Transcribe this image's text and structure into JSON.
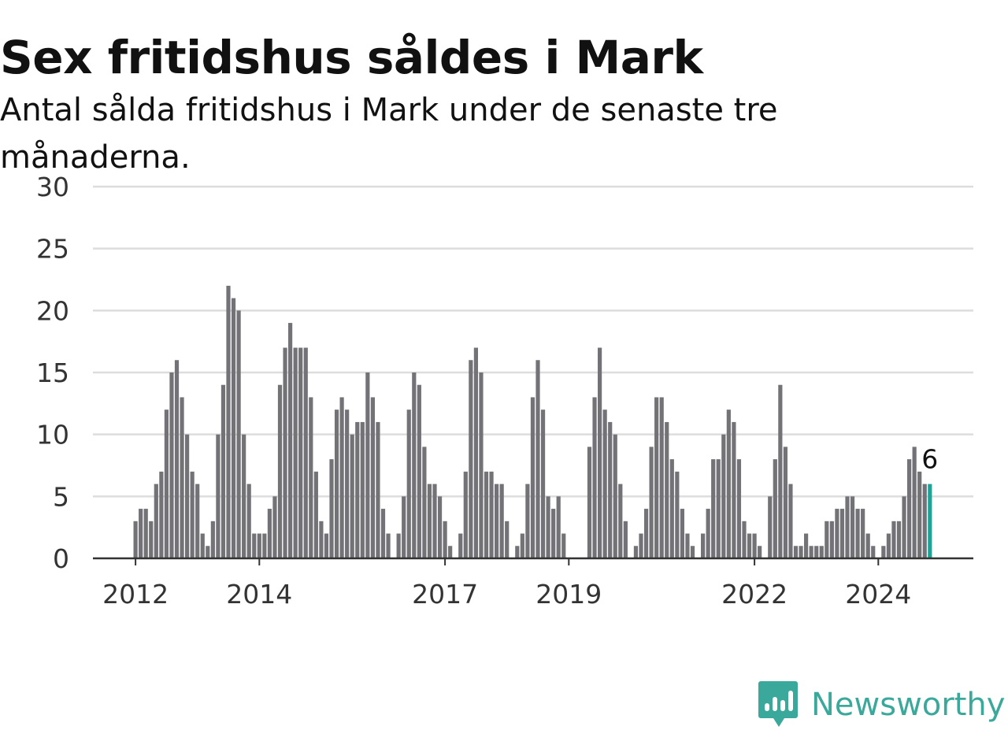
{
  "title": "Sex fritidshus såldes i Mark",
  "subtitle": "Antal sålda fritidshus i Mark under de senaste tre månaderna.",
  "brand": {
    "name": "Newsworthy",
    "icon": "newsworthy-logo-icon",
    "color": "#3aa99b"
  },
  "colors": {
    "bar": "#737277",
    "highlight": "#1fa397",
    "grid": "#dddddd",
    "axis": "#333333"
  },
  "chart_data": {
    "type": "bar",
    "title": "Sex fritidshus såldes i Mark",
    "subtitle": "Antal sålda fritidshus i Mark under de senaste tre månaderna.",
    "xlabel": "",
    "ylabel": "",
    "ylim": [
      0,
      30
    ],
    "yticks": [
      0,
      5,
      10,
      15,
      20,
      25,
      30
    ],
    "grid": true,
    "start": "2012-01",
    "x_tick_labels": [
      "2012",
      "2014",
      "2017",
      "2019",
      "2022",
      "2024"
    ],
    "highlight_label": "6",
    "series": [
      {
        "values": [
          3,
          4,
          4,
          3,
          6,
          7,
          12,
          15,
          16,
          13,
          10,
          7,
          6,
          2,
          1,
          3,
          10,
          14,
          22,
          21,
          20,
          10,
          6,
          2,
          2,
          2,
          4,
          5,
          14,
          17,
          19,
          17,
          17,
          17,
          13,
          7,
          3,
          2,
          8,
          12,
          13,
          12,
          10,
          11,
          11,
          15,
          13,
          11,
          4,
          2,
          0,
          2,
          5,
          12,
          15,
          14,
          9,
          6,
          6,
          5,
          3,
          1,
          0,
          2,
          7,
          16,
          17,
          15,
          7,
          7,
          6,
          6,
          3,
          0,
          1,
          2,
          6,
          13,
          16,
          12,
          5,
          4,
          5,
          2,
          0,
          0,
          0,
          0,
          9,
          13,
          17,
          12,
          11,
          10,
          6,
          3,
          0,
          1,
          2,
          4,
          9,
          13,
          13,
          11,
          8,
          7,
          4,
          2,
          1,
          0,
          2,
          4,
          8,
          8,
          10,
          12,
          11,
          8,
          3,
          2,
          2,
          1,
          0,
          5,
          8,
          14,
          9,
          6,
          1,
          1,
          2,
          1,
          1,
          1,
          3,
          3,
          4,
          4,
          5,
          5,
          4,
          4,
          2,
          1,
          0,
          1,
          2,
          3,
          3,
          5,
          8,
          9,
          7,
          6,
          6
        ]
      }
    ]
  }
}
